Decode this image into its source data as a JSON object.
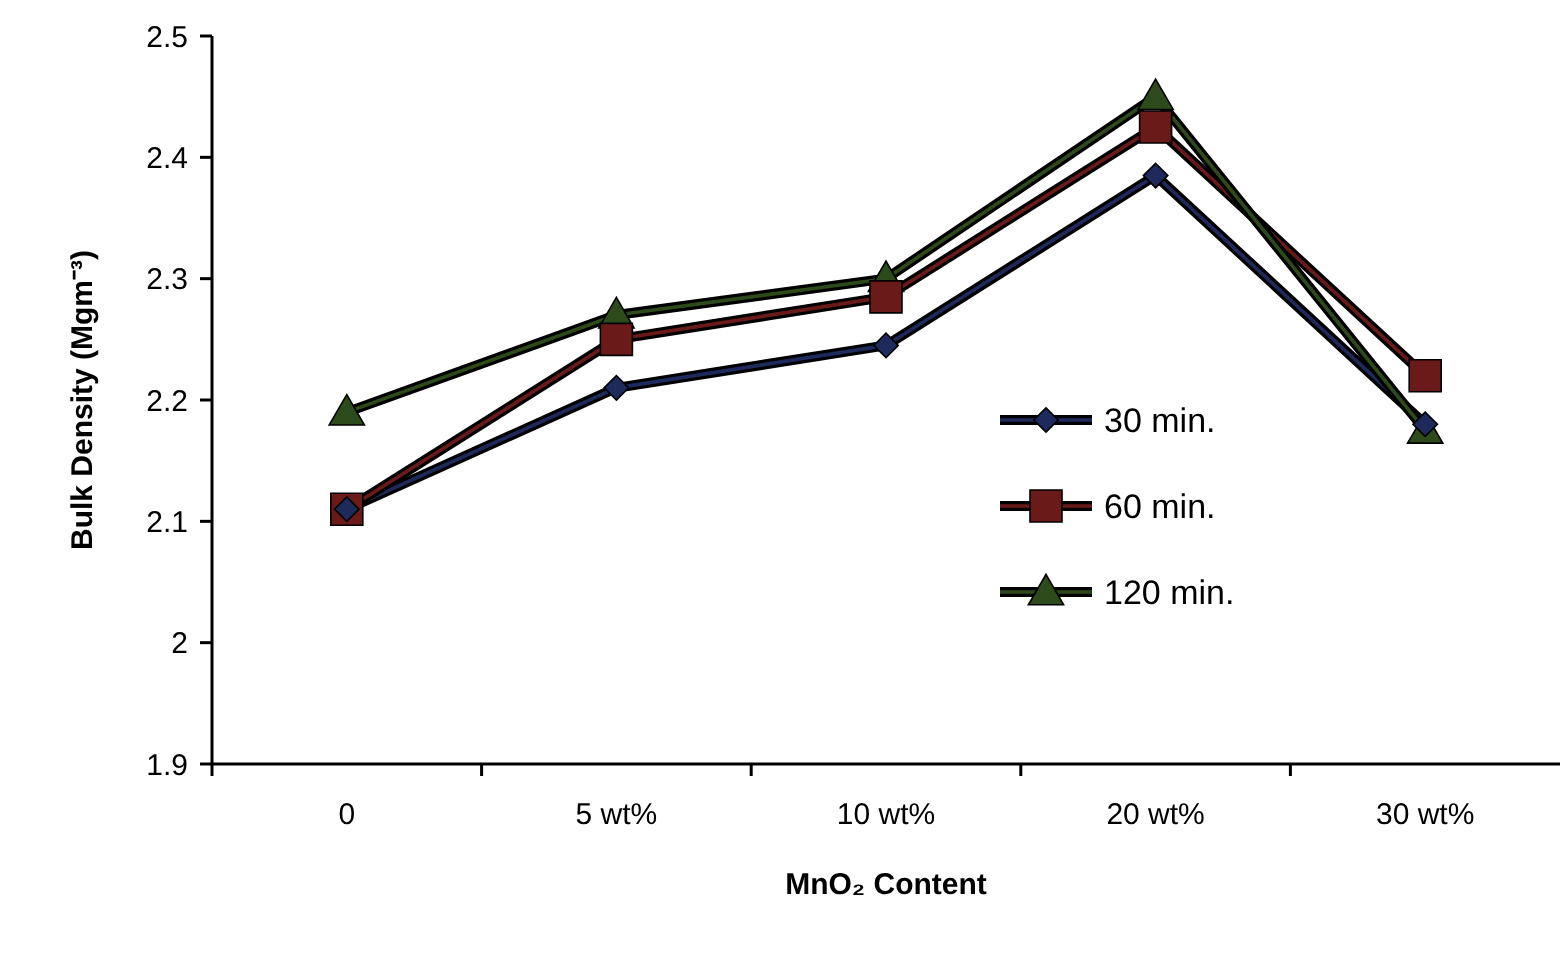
{
  "chart_data": {
    "type": "line",
    "xlabel": "MnO₂ Content",
    "ylabel": "Bulk Density (Mgm⁻³)",
    "categories": [
      "0",
      "5 wt%",
      "10 wt%",
      "20 wt%",
      "30 wt%"
    ],
    "series": [
      {
        "name": "30 min.",
        "color": "#1f2a5c",
        "marker": "diamond",
        "values": [
          2.11,
          2.21,
          2.245,
          2.385,
          2.18
        ]
      },
      {
        "name": "60 min.",
        "color": "#6b1a1a",
        "marker": "square",
        "values": [
          2.11,
          2.25,
          2.285,
          2.425,
          2.22
        ]
      },
      {
        "name": "120 min.",
        "color": "#2c4a1a",
        "marker": "triangle",
        "values": [
          2.19,
          2.27,
          2.3,
          2.45,
          2.175
        ]
      }
    ],
    "ylim": [
      1.9,
      2.5
    ],
    "yticks": [
      1.9,
      {
        "value": 2,
        "label": "2"
      },
      2.1,
      2.2,
      2.3,
      2.4,
      2.5
    ],
    "grid": false,
    "legend": "right",
    "line_style": "solid"
  }
}
